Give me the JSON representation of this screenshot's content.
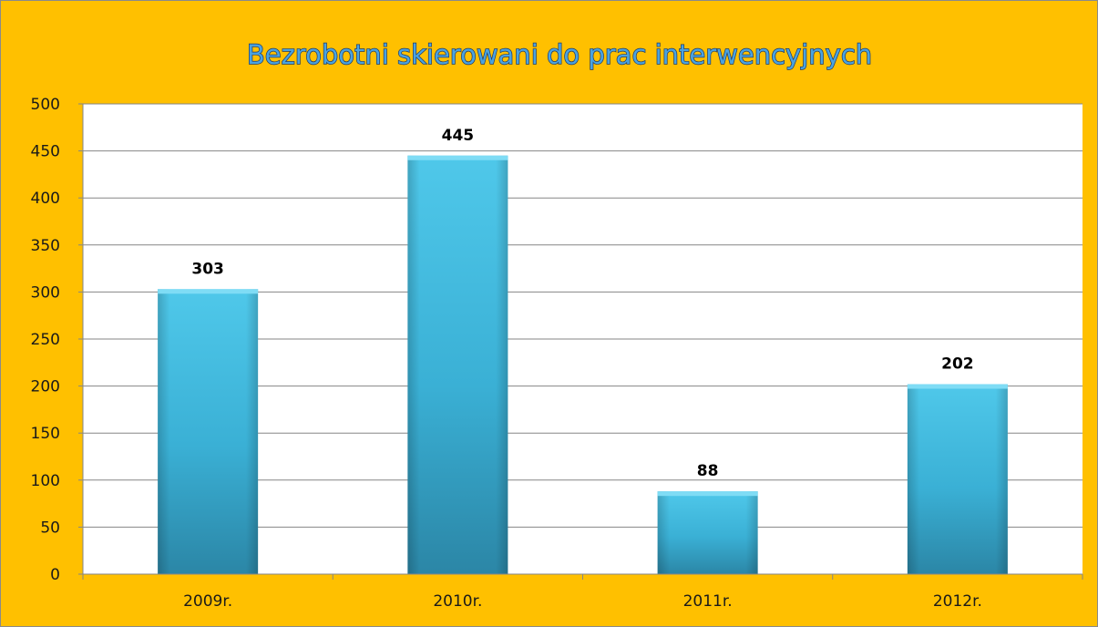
{
  "chart_data": {
    "type": "bar",
    "title": "Bezrobotni skierowani do prac interwencyjnych",
    "categories": [
      "2009r.",
      "2010r.",
      "2011r.",
      "2012r."
    ],
    "values": [
      303,
      445,
      88,
      202
    ],
    "data_labels": [
      "303",
      "445",
      "88",
      "202"
    ],
    "yticks": [
      "0",
      "50",
      "100",
      "150",
      "200",
      "250",
      "300",
      "350",
      "400",
      "450",
      "500"
    ],
    "ylim": [
      0,
      500
    ],
    "grid": true,
    "legend": "none",
    "xlabel": "",
    "ylabel": ""
  },
  "colors": {
    "background": "#ffc000",
    "plot_area": "#ffffff",
    "bar_light": "#4fc8ea",
    "bar_dark": "#2b86a6",
    "gridline": "#868686",
    "title_fill": "#4aa3e0",
    "title_stroke": "#1f3864"
  }
}
